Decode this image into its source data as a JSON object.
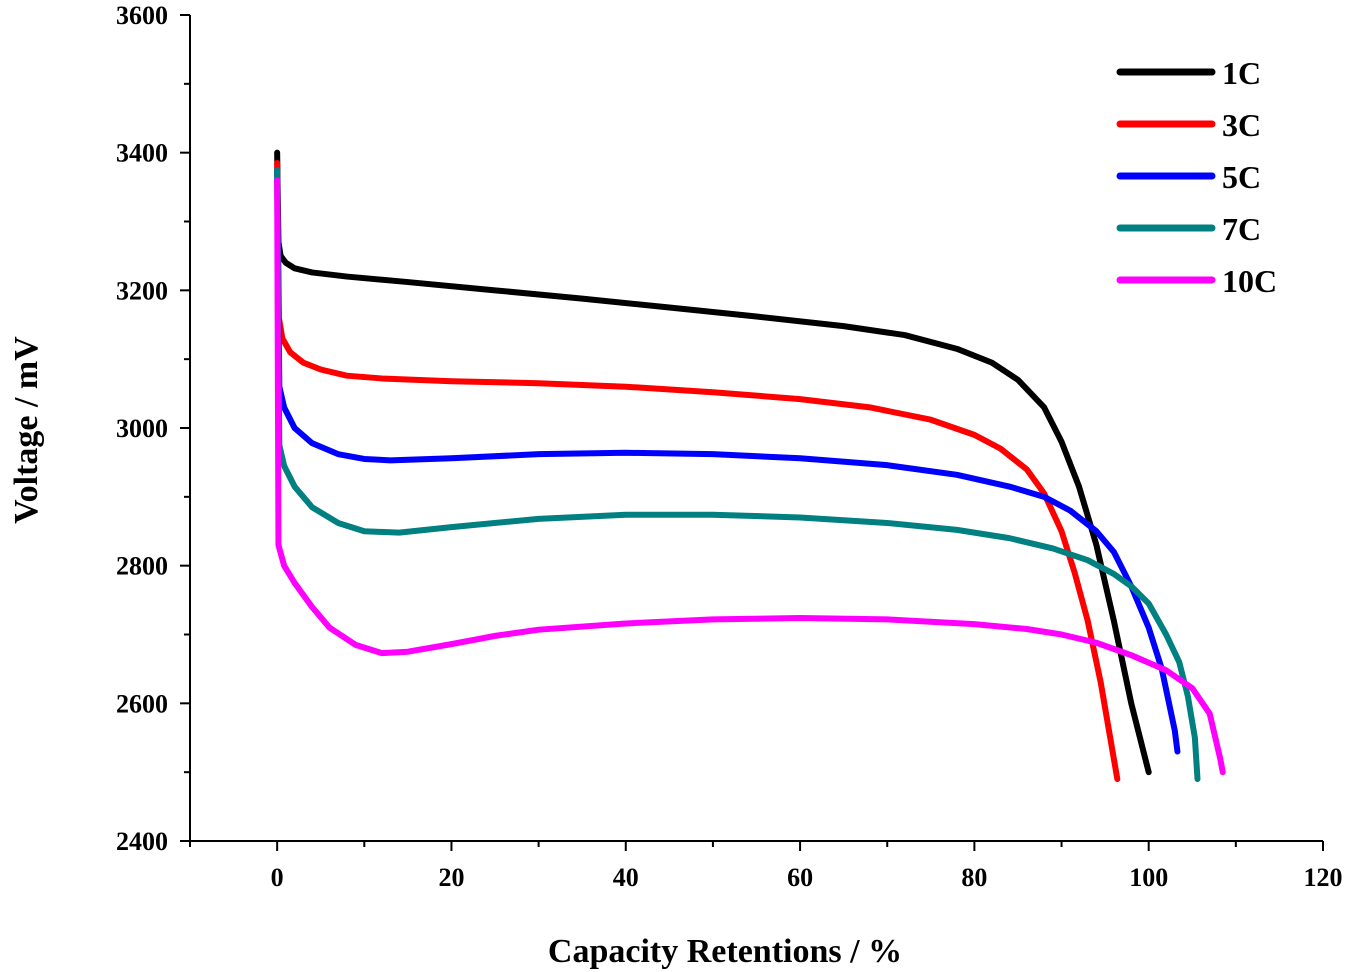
{
  "chart_data": {
    "type": "line",
    "title": "",
    "xlabel": "Capacity Retentions / %",
    "ylabel": "Voltage / mV",
    "xlim": [
      -10,
      120
    ],
    "ylim": [
      2400,
      3600
    ],
    "xticks": [
      0,
      20,
      40,
      60,
      80,
      100,
      120
    ],
    "yticks": [
      2400,
      2600,
      2800,
      3000,
      3200,
      3400,
      3600
    ],
    "grid": false,
    "legend_position": "top-right",
    "series": [
      {
        "name": "1C",
        "color": "#000000",
        "points": [
          [
            0,
            3400
          ],
          [
            0.15,
            3270
          ],
          [
            0.4,
            3250
          ],
          [
            1,
            3240
          ],
          [
            2,
            3232
          ],
          [
            4,
            3226
          ],
          [
            8,
            3220
          ],
          [
            15,
            3212
          ],
          [
            25,
            3200
          ],
          [
            35,
            3188
          ],
          [
            45,
            3175
          ],
          [
            55,
            3162
          ],
          [
            65,
            3148
          ],
          [
            72,
            3135
          ],
          [
            78,
            3115
          ],
          [
            82,
            3095
          ],
          [
            85,
            3070
          ],
          [
            88,
            3030
          ],
          [
            90,
            2980
          ],
          [
            92,
            2915
          ],
          [
            94,
            2830
          ],
          [
            96,
            2720
          ],
          [
            98,
            2600
          ],
          [
            100,
            2500
          ]
        ]
      },
      {
        "name": "3C",
        "color": "#ff0000",
        "points": [
          [
            0,
            3385
          ],
          [
            0.2,
            3160
          ],
          [
            0.6,
            3130
          ],
          [
            1.5,
            3110
          ],
          [
            3,
            3095
          ],
          [
            5,
            3085
          ],
          [
            8,
            3076
          ],
          [
            12,
            3072
          ],
          [
            20,
            3068
          ],
          [
            30,
            3065
          ],
          [
            40,
            3060
          ],
          [
            50,
            3052
          ],
          [
            60,
            3042
          ],
          [
            68,
            3030
          ],
          [
            75,
            3012
          ],
          [
            80,
            2990
          ],
          [
            83,
            2970
          ],
          [
            86,
            2940
          ],
          [
            88,
            2905
          ],
          [
            90,
            2850
          ],
          [
            91.5,
            2790
          ],
          [
            93,
            2720
          ],
          [
            94.5,
            2630
          ],
          [
            96.4,
            2490
          ]
        ]
      },
      {
        "name": "5C",
        "color": "#0000ff",
        "points": [
          [
            0,
            3375
          ],
          [
            0.25,
            3060
          ],
          [
            0.8,
            3030
          ],
          [
            2,
            3000
          ],
          [
            4,
            2978
          ],
          [
            7,
            2962
          ],
          [
            10,
            2955
          ],
          [
            13,
            2953
          ],
          [
            20,
            2956
          ],
          [
            30,
            2962
          ],
          [
            40,
            2964
          ],
          [
            50,
            2962
          ],
          [
            60,
            2956
          ],
          [
            70,
            2946
          ],
          [
            78,
            2932
          ],
          [
            84,
            2915
          ],
          [
            88,
            2900
          ],
          [
            91,
            2880
          ],
          [
            94,
            2850
          ],
          [
            96,
            2820
          ],
          [
            98,
            2770
          ],
          [
            100,
            2710
          ],
          [
            101.5,
            2650
          ],
          [
            103,
            2560
          ],
          [
            103.3,
            2530
          ]
        ]
      },
      {
        "name": "7C",
        "color": "#008080",
        "points": [
          [
            0,
            3375
          ],
          [
            0.25,
            2975
          ],
          [
            0.8,
            2945
          ],
          [
            2,
            2915
          ],
          [
            4,
            2885
          ],
          [
            7,
            2862
          ],
          [
            10,
            2850
          ],
          [
            14,
            2848
          ],
          [
            20,
            2856
          ],
          [
            30,
            2868
          ],
          [
            40,
            2874
          ],
          [
            50,
            2874
          ],
          [
            60,
            2870
          ],
          [
            70,
            2862
          ],
          [
            78,
            2852
          ],
          [
            84,
            2840
          ],
          [
            89,
            2825
          ],
          [
            93,
            2808
          ],
          [
            96,
            2788
          ],
          [
            98,
            2770
          ],
          [
            100,
            2745
          ],
          [
            102,
            2700
          ],
          [
            103.5,
            2660
          ],
          [
            104.5,
            2610
          ],
          [
            105.3,
            2550
          ],
          [
            105.6,
            2490
          ]
        ]
      },
      {
        "name": "10C",
        "color": "#ff00ff",
        "points": [
          [
            0,
            3360
          ],
          [
            0.15,
            2830
          ],
          [
            0.8,
            2800
          ],
          [
            2,
            2775
          ],
          [
            4,
            2740
          ],
          [
            6,
            2710
          ],
          [
            9,
            2685
          ],
          [
            12,
            2673
          ],
          [
            15,
            2675
          ],
          [
            20,
            2686
          ],
          [
            25,
            2698
          ],
          [
            30,
            2707
          ],
          [
            40,
            2716
          ],
          [
            50,
            2722
          ],
          [
            60,
            2724
          ],
          [
            70,
            2722
          ],
          [
            80,
            2715
          ],
          [
            86,
            2708
          ],
          [
            90,
            2700
          ],
          [
            94,
            2688
          ],
          [
            98,
            2670
          ],
          [
            102,
            2648
          ],
          [
            105,
            2622
          ],
          [
            107,
            2585
          ],
          [
            108.2,
            2520
          ],
          [
            108.5,
            2500
          ]
        ]
      }
    ]
  }
}
